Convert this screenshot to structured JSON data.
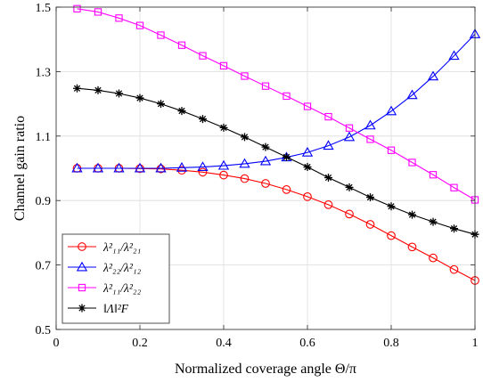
{
  "chart_data": {
    "type": "line",
    "xlabel": "Normalized coverage angle Θ/π",
    "ylabel": "Channel gain ratio",
    "xlim": [
      0,
      1
    ],
    "ylim": [
      0.5,
      1.5
    ],
    "xticks": [
      0,
      0.2,
      0.4,
      0.6,
      0.8,
      1
    ],
    "xtick_labels": [
      "0",
      "0.2",
      "0.4",
      "0.6",
      "0.8",
      "1"
    ],
    "yticks": [
      0.5,
      0.7,
      0.9,
      1.1,
      1.3,
      1.5
    ],
    "ytick_labels": [
      "0.5",
      "0.7",
      "0.9",
      "1.1",
      "1.3",
      "1.5"
    ],
    "grid": true,
    "legend_position": "bottom-left",
    "x": [
      0.05,
      0.1,
      0.15,
      0.2,
      0.25,
      0.3,
      0.35,
      0.4,
      0.45,
      0.5,
      0.55,
      0.6,
      0.65,
      0.7,
      0.75,
      0.8,
      0.85,
      0.9,
      0.95,
      1.0
    ],
    "series": [
      {
        "name": "λ²₁₁/λ²₂₁",
        "color": "#ff0000",
        "marker": "circle",
        "values": [
          1.0,
          1.0,
          1.0,
          0.999,
          0.998,
          0.994,
          0.988,
          0.979,
          0.968,
          0.953,
          0.934,
          0.912,
          0.887,
          0.858,
          0.826,
          0.791,
          0.756,
          0.722,
          0.686,
          0.652
        ]
      },
      {
        "name": "λ²₂₂/λ²₁₂",
        "color": "#0000ff",
        "marker": "triangle",
        "values": [
          1.0,
          1.0,
          1.0,
          1.0,
          1.0,
          1.002,
          1.004,
          1.008,
          1.014,
          1.022,
          1.034,
          1.049,
          1.07,
          1.097,
          1.133,
          1.177,
          1.227,
          1.285,
          1.349,
          1.416
        ]
      },
      {
        "name": "λ²₁₁/λ²₂₂",
        "color": "#ff00ff",
        "marker": "square",
        "values": [
          1.495,
          1.485,
          1.466,
          1.443,
          1.413,
          1.382,
          1.349,
          1.318,
          1.286,
          1.255,
          1.224,
          1.192,
          1.16,
          1.125,
          1.09,
          1.056,
          1.018,
          0.98,
          0.94,
          0.902
        ]
      },
      {
        "name": "‖Λ‖²F",
        "color": "#000000",
        "marker": "star",
        "values": [
          1.248,
          1.242,
          1.232,
          1.218,
          1.2,
          1.178,
          1.153,
          1.126,
          1.097,
          1.066,
          1.035,
          1.004,
          0.971,
          0.941,
          0.91,
          0.882,
          0.856,
          0.834,
          0.813,
          0.795
        ]
      }
    ]
  }
}
